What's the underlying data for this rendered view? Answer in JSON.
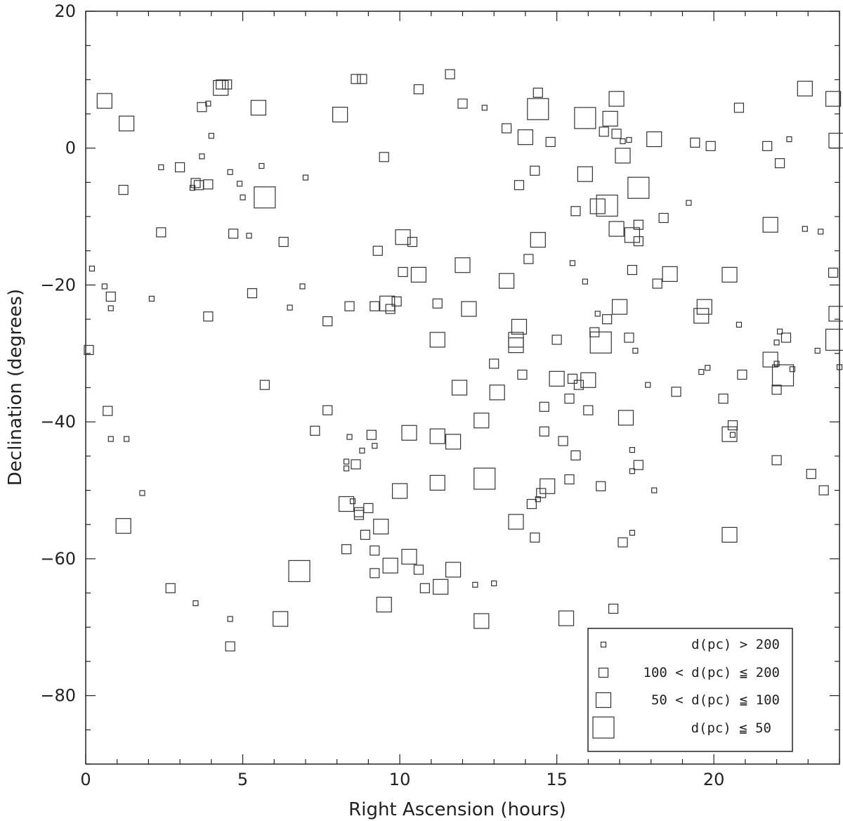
{
  "chart_data": {
    "type": "scatter",
    "xlabel": "Right Ascension (hours)",
    "ylabel": "Declination (degrees)",
    "xlim": [
      0,
      24
    ],
    "ylim": [
      -90,
      20
    ],
    "x_ticks": [
      "0",
      "5",
      "10",
      "15",
      "20"
    ],
    "y_ticks": [
      "20",
      "0",
      "−20",
      "−40",
      "−60",
      "−80"
    ],
    "grid": false,
    "legend_position": "bottom-right",
    "legend": [
      {
        "label": "d(pc) > 200",
        "marker_class": "xs"
      },
      {
        "label": "100 < d(pc) ≦ 200",
        "marker_class": "s"
      },
      {
        "label": "50 < d(pc) ≦ 100",
        "marker_class": "m"
      },
      {
        "label": "d(pc) ≦ 50",
        "marker_class": "l"
      }
    ],
    "marker_color": "#333333",
    "series": [
      {
        "name": "d(pc) > 200",
        "class": "xs",
        "points": [
          [
            0.2,
            -17.6
          ],
          [
            0.6,
            -20.2
          ],
          [
            0.8,
            -23.4
          ],
          [
            0.8,
            -42.5
          ],
          [
            1.3,
            -42.5
          ],
          [
            1.8,
            -50.4
          ],
          [
            2.1,
            -22.0
          ],
          [
            2.4,
            -2.8
          ],
          [
            3.5,
            -66.5
          ],
          [
            3.4,
            -5.8
          ],
          [
            3.7,
            -1.2
          ],
          [
            3.9,
            6.5
          ],
          [
            4.0,
            1.8
          ],
          [
            4.6,
            -3.5
          ],
          [
            4.6,
            -68.8
          ],
          [
            4.9,
            -5.2
          ],
          [
            5.0,
            -7.2
          ],
          [
            5.2,
            -12.8
          ],
          [
            5.6,
            -2.6
          ],
          [
            6.5,
            -23.3
          ],
          [
            6.9,
            -20.2
          ],
          [
            7.0,
            -4.3
          ],
          [
            8.3,
            -45.8
          ],
          [
            8.3,
            -46.8
          ],
          [
            8.4,
            -42.2
          ],
          [
            8.5,
            -51.6
          ],
          [
            8.8,
            -44.2
          ],
          [
            9.2,
            -43.5
          ],
          [
            12.7,
            5.9
          ],
          [
            12.4,
            -63.8
          ],
          [
            13.0,
            -63.6
          ],
          [
            14.4,
            -51.3
          ],
          [
            15.5,
            -16.8
          ],
          [
            15.9,
            -19.5
          ],
          [
            16.3,
            -24.2
          ],
          [
            17.1,
            1.0
          ],
          [
            17.3,
            1.2
          ],
          [
            17.4,
            -44.1
          ],
          [
            17.4,
            -47.2
          ],
          [
            17.4,
            -56.2
          ],
          [
            17.5,
            -29.6
          ],
          [
            17.9,
            -34.6
          ],
          [
            18.1,
            -50.0
          ],
          [
            19.2,
            -8.0
          ],
          [
            19.6,
            -32.7
          ],
          [
            19.8,
            -32.1
          ],
          [
            20.6,
            -41.9
          ],
          [
            20.8,
            -25.8
          ],
          [
            22.0,
            -31.5
          ],
          [
            22.0,
            -28.4
          ],
          [
            22.1,
            -26.8
          ],
          [
            22.4,
            1.3
          ],
          [
            22.5,
            -32.3
          ],
          [
            22.9,
            -11.8
          ],
          [
            23.3,
            -29.6
          ],
          [
            23.4,
            -12.2
          ],
          [
            24.0,
            -32.0
          ]
        ]
      },
      {
        "name": "100 < d(pc) ≦ 200",
        "class": "s",
        "points": [
          [
            0.1,
            -29.5
          ],
          [
            0.7,
            -38.4
          ],
          [
            0.8,
            -21.7
          ],
          [
            1.2,
            -6.1
          ],
          [
            2.4,
            -12.3
          ],
          [
            2.7,
            -64.3
          ],
          [
            3.0,
            -2.8
          ],
          [
            3.5,
            -5.1
          ],
          [
            3.6,
            -5.4
          ],
          [
            3.7,
            6.0
          ],
          [
            3.9,
            -5.3
          ],
          [
            3.9,
            -24.6
          ],
          [
            4.3,
            9.3
          ],
          [
            4.5,
            9.3
          ],
          [
            4.6,
            -72.8
          ],
          [
            4.7,
            -12.5
          ],
          [
            5.3,
            -21.2
          ],
          [
            5.7,
            -34.6
          ],
          [
            6.3,
            -13.7
          ],
          [
            7.3,
            -41.3
          ],
          [
            7.7,
            -25.3
          ],
          [
            7.7,
            -38.3
          ],
          [
            8.3,
            -58.6
          ],
          [
            8.4,
            -23.1
          ],
          [
            8.6,
            -46.2
          ],
          [
            8.6,
            10.1
          ],
          [
            8.7,
            -53.2
          ],
          [
            8.7,
            -53.6
          ],
          [
            8.8,
            10.1
          ],
          [
            8.9,
            -56.5
          ],
          [
            9.0,
            -52.6
          ],
          [
            9.1,
            -41.9
          ],
          [
            9.2,
            -23.1
          ],
          [
            9.2,
            -58.8
          ],
          [
            9.2,
            -62.1
          ],
          [
            9.3,
            -15.0
          ],
          [
            9.5,
            -1.3
          ],
          [
            9.7,
            -23.5
          ],
          [
            9.9,
            -22.4
          ],
          [
            10.1,
            -18.1
          ],
          [
            10.4,
            -13.7
          ],
          [
            10.6,
            -61.6
          ],
          [
            10.6,
            8.6
          ],
          [
            10.8,
            -64.3
          ],
          [
            11.2,
            -22.7
          ],
          [
            11.6,
            10.8
          ],
          [
            12.0,
            6.5
          ],
          [
            13.0,
            -31.5
          ],
          [
            13.4,
            2.9
          ],
          [
            13.8,
            -5.4
          ],
          [
            13.9,
            -33.1
          ],
          [
            14.1,
            -16.2
          ],
          [
            14.2,
            -52.0
          ],
          [
            14.3,
            -3.3
          ],
          [
            14.3,
            -56.9
          ],
          [
            14.4,
            8.1
          ],
          [
            14.5,
            -50.4
          ],
          [
            14.6,
            -41.4
          ],
          [
            14.6,
            -37.8
          ],
          [
            14.8,
            0.9
          ],
          [
            15.0,
            -28.0
          ],
          [
            15.2,
            -42.8
          ],
          [
            15.4,
            -36.6
          ],
          [
            15.4,
            -48.4
          ],
          [
            15.5,
            -33.7
          ],
          [
            15.6,
            -9.2
          ],
          [
            15.6,
            -44.9
          ],
          [
            15.7,
            -34.6
          ],
          [
            16.0,
            -38.3
          ],
          [
            16.2,
            -26.9
          ],
          [
            16.4,
            -49.4
          ],
          [
            16.5,
            2.4
          ],
          [
            16.6,
            -25.0
          ],
          [
            16.8,
            -67.3
          ],
          [
            16.9,
            2.1
          ],
          [
            17.1,
            -57.6
          ],
          [
            17.3,
            -27.7
          ],
          [
            17.4,
            -17.8
          ],
          [
            17.6,
            -11.2
          ],
          [
            17.6,
            -13.6
          ],
          [
            17.6,
            -46.3
          ],
          [
            18.2,
            -19.8
          ],
          [
            18.4,
            -10.2
          ],
          [
            18.8,
            -35.6
          ],
          [
            19.4,
            0.8
          ],
          [
            19.9,
            0.3
          ],
          [
            20.3,
            -36.6
          ],
          [
            20.6,
            -40.5
          ],
          [
            20.9,
            -33.1
          ],
          [
            20.8,
            5.9
          ],
          [
            21.7,
            0.3
          ],
          [
            22.0,
            -35.3
          ],
          [
            22.0,
            -45.6
          ],
          [
            22.1,
            -2.2
          ],
          [
            22.3,
            -27.7
          ],
          [
            23.1,
            -47.6
          ],
          [
            23.5,
            -50.0
          ],
          [
            23.8,
            -18.2
          ]
        ]
      },
      {
        "name": "50 < d(pc) ≦ 100",
        "class": "m",
        "points": [
          [
            0.6,
            6.9
          ],
          [
            1.3,
            3.6
          ],
          [
            1.2,
            -55.2
          ],
          [
            4.3,
            8.8
          ],
          [
            5.5,
            5.9
          ],
          [
            6.2,
            -68.8
          ],
          [
            8.1,
            4.9
          ],
          [
            8.3,
            -52.0
          ],
          [
            9.4,
            -55.3
          ],
          [
            9.5,
            -66.7
          ],
          [
            9.6,
            -22.7
          ],
          [
            9.7,
            -61.0
          ],
          [
            10.0,
            -50.1
          ],
          [
            10.1,
            -13.0
          ],
          [
            10.3,
            -41.6
          ],
          [
            10.3,
            -59.7
          ],
          [
            10.6,
            -18.5
          ],
          [
            11.2,
            -42.1
          ],
          [
            11.2,
            -28.0
          ],
          [
            11.2,
            -48.9
          ],
          [
            11.3,
            -64.1
          ],
          [
            11.7,
            -42.9
          ],
          [
            11.7,
            -61.6
          ],
          [
            11.9,
            -35.0
          ],
          [
            12.0,
            -17.1
          ],
          [
            12.2,
            -23.5
          ],
          [
            12.6,
            -39.8
          ],
          [
            12.6,
            -69.1
          ],
          [
            13.1,
            -35.7
          ],
          [
            13.4,
            -19.4
          ],
          [
            13.7,
            -28.0
          ],
          [
            13.7,
            -28.8
          ],
          [
            13.7,
            -54.6
          ],
          [
            13.8,
            -26.1
          ],
          [
            14.0,
            1.6
          ],
          [
            14.4,
            -13.4
          ],
          [
            14.7,
            -49.4
          ],
          [
            15.0,
            -33.7
          ],
          [
            15.3,
            -68.7
          ],
          [
            15.9,
            -3.8
          ],
          [
            16.0,
            -33.9
          ],
          [
            16.3,
            -8.5
          ],
          [
            16.7,
            4.3
          ],
          [
            16.9,
            7.2
          ],
          [
            16.9,
            -11.8
          ],
          [
            17.0,
            -23.2
          ],
          [
            17.1,
            -1.1
          ],
          [
            17.2,
            -39.4
          ],
          [
            17.4,
            -12.7
          ],
          [
            18.1,
            1.3
          ],
          [
            18.6,
            -18.4
          ],
          [
            19.6,
            -24.5
          ],
          [
            19.7,
            -23.2
          ],
          [
            20.5,
            -18.5
          ],
          [
            20.5,
            -56.5
          ],
          [
            20.5,
            -41.8
          ],
          [
            21.8,
            -11.2
          ],
          [
            21.8,
            -30.9
          ],
          [
            22.9,
            8.7
          ],
          [
            23.8,
            7.2
          ],
          [
            23.9,
            1.1
          ],
          [
            23.9,
            -24.2
          ]
        ]
      },
      {
        "name": "d(pc) ≦ 50",
        "class": "l",
        "points": [
          [
            5.7,
            -7.2
          ],
          [
            6.8,
            -61.8
          ],
          [
            12.7,
            -48.3
          ],
          [
            14.4,
            5.7
          ],
          [
            15.9,
            4.4
          ],
          [
            16.6,
            -8.4
          ],
          [
            16.4,
            -28.4
          ],
          [
            17.6,
            -5.8
          ],
          [
            22.2,
            -33.2
          ],
          [
            23.9,
            -28.0
          ]
        ]
      }
    ]
  }
}
